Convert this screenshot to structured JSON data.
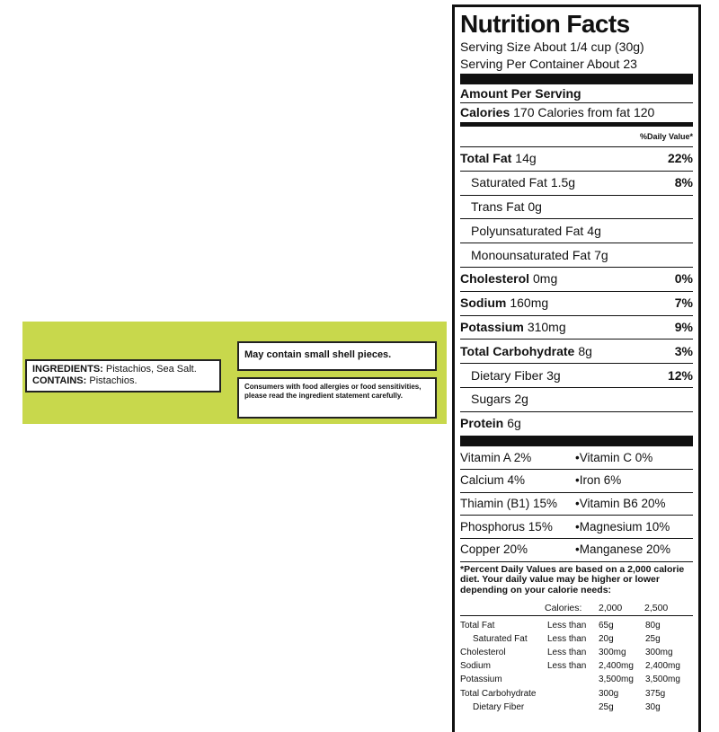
{
  "ingredients": {
    "ingredients_label": "INGREDIENTS:",
    "ingredients_text": "Pistachios, Sea Salt.",
    "contains_label": "CONTAINS:",
    "contains_text": "Pistachios.",
    "warning": "May contain small shell pieces.",
    "allergy_note": "Consumers with food allergies or food sensitivities, please read the ingredient statement carefully."
  },
  "nutrition": {
    "title": "Nutrition Facts",
    "serving_size": "Serving Size About 1/4 cup (30g)",
    "servings_per_container": "Serving Per Container About 23",
    "amount_per_serving": "Amount Per Serving",
    "calories_label": "Calories",
    "calories": "170",
    "calories_from_fat": "Calories from fat 120",
    "dv_header": "%Daily Value*",
    "nutrients": [
      {
        "name": "Total Fat",
        "amount": "14g",
        "dv": "22%",
        "bold": true
      },
      {
        "name": "Saturated Fat",
        "amount": "1.5g",
        "dv": "8%",
        "bold": false
      },
      {
        "name": "Trans Fat",
        "amount": "0g",
        "bold": false
      },
      {
        "name": "Polyunsaturated Fat",
        "amount": "4g",
        "bold": false
      },
      {
        "name": "Monounsaturated Fat",
        "amount": "7g",
        "bold": false
      },
      {
        "name": "Cholesterol",
        "amount": "0mg",
        "dv": "0%",
        "bold": true
      },
      {
        "name": "Sodium",
        "amount": "160mg",
        "dv": "7%",
        "bold": true
      },
      {
        "name": "Potassium",
        "amount": "310mg",
        "dv": "9%",
        "bold": true
      },
      {
        "name": "Total Carbohydrate",
        "amount": "8g",
        "dv": "3%",
        "bold": true
      },
      {
        "name": "Dietary Fiber",
        "amount": "3g",
        "dv": "12%",
        "bold": false
      },
      {
        "name": "Sugars",
        "amount": "2g",
        "bold": false
      },
      {
        "name": "Protein",
        "amount": "6g",
        "bold": true
      }
    ],
    "vitamins": [
      [
        "Vitamin A 2%",
        "•Vitamin C 0%"
      ],
      [
        "Calcium 4%",
        "•Iron 6%"
      ],
      [
        "Thiamin (B1) 15%",
        "•Vitamin B6 20%"
      ],
      [
        "Phosphorus 15%",
        "•Magnesium 10%"
      ],
      [
        "Copper 20%",
        "•Manganese 20%"
      ]
    ],
    "footnote": "*Percent Daily Values are based on a 2,000 calorie diet. Your daily value may be higher or lower depending on your calorie needs:",
    "reference": {
      "header": [
        "Calories:",
        "2,000",
        "2,500"
      ],
      "rows": [
        [
          "Total Fat",
          "Less than",
          "65g",
          "80g"
        ],
        [
          "Saturated Fat",
          "Less than",
          "20g",
          "25g"
        ],
        [
          "Cholesterol",
          "Less than",
          "300mg",
          "300mg"
        ],
        [
          "Sodium",
          "Less than",
          "2,400mg",
          "2,400mg"
        ],
        [
          "Potassium",
          null,
          "3,500mg",
          "3,500mg"
        ],
        [
          "Total Carbohydrate",
          null,
          "300g",
          "375g"
        ],
        [
          "Dietary Fiber",
          null,
          "25g",
          "30g"
        ]
      ]
    }
  }
}
